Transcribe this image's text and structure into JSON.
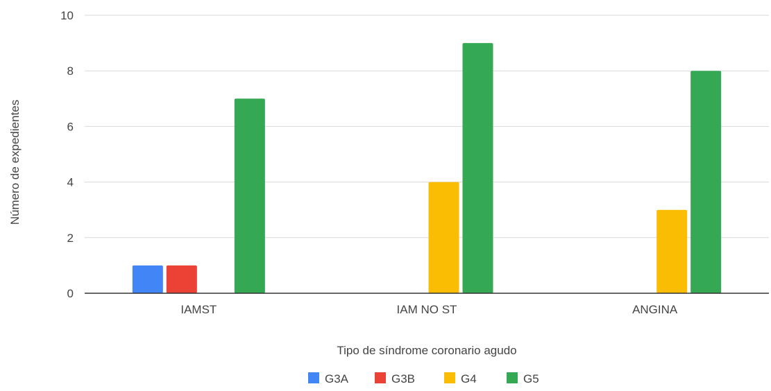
{
  "chart_data": {
    "type": "bar",
    "title": "",
    "xlabel": "Tipo de síndrome coronario agudo",
    "ylabel": "Número de expedientes",
    "categories": [
      "IAMST",
      "IAM NO ST",
      "ANGINA"
    ],
    "ylim": [
      0,
      10
    ],
    "yticks": [
      0,
      2,
      4,
      6,
      8,
      10
    ],
    "grid": true,
    "legend_position": "bottom",
    "series": [
      {
        "name": "G3A",
        "color": "#4285F4",
        "values": [
          1,
          0,
          0
        ]
      },
      {
        "name": "G3B",
        "color": "#EA4335",
        "values": [
          1,
          0,
          0
        ]
      },
      {
        "name": "G4",
        "color": "#FBBC04",
        "values": [
          0,
          4,
          3
        ]
      },
      {
        "name": "G5",
        "color": "#34A853",
        "values": [
          7,
          9,
          8
        ]
      }
    ]
  }
}
